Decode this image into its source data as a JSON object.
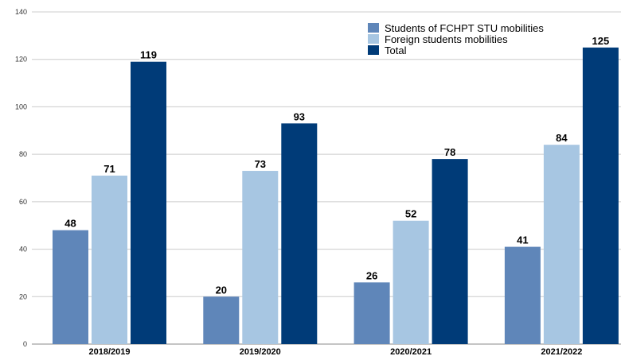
{
  "chart_data": {
    "type": "bar",
    "title": "",
    "xlabel": "",
    "ylabel": "",
    "ylim": [
      0,
      140
    ],
    "yticks": [
      0,
      20,
      40,
      60,
      80,
      100,
      120,
      140
    ],
    "grid": true,
    "legend_position": "top-right",
    "categories": [
      "2018/2019",
      "2019/2020",
      "2020/2021",
      "2021/2022"
    ],
    "series": [
      {
        "name": "Students of FCHPT STU mobilities",
        "color": "#5f86b9",
        "values": [
          48,
          20,
          26,
          41
        ]
      },
      {
        "name": "Foreign students mobilities",
        "color": "#a7c6e2",
        "values": [
          71,
          73,
          52,
          84
        ]
      },
      {
        "name": "Total",
        "color": "#003b78",
        "values": [
          119,
          93,
          78,
          125
        ]
      }
    ]
  }
}
